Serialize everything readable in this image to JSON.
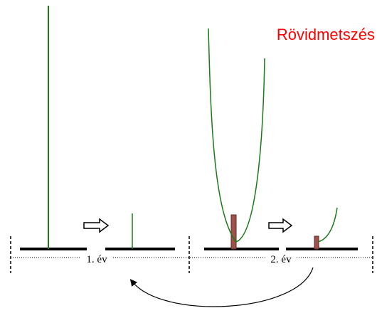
{
  "header": {
    "title": "Rövidmetszés"
  },
  "labels": [
    "1. év",
    "2. év"
  ]
}
